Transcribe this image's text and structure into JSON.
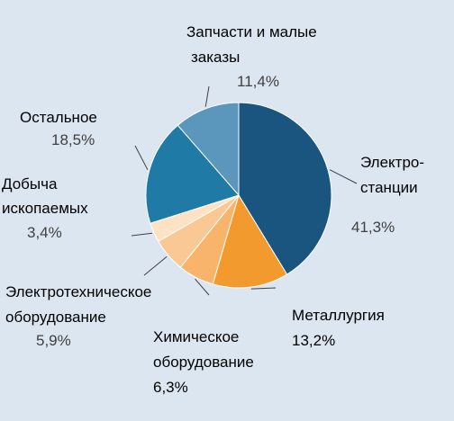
{
  "chart_data": {
    "type": "pie",
    "slices": [
      {
        "label_lines": [
          "Электро-",
          "станции"
        ],
        "value": 41.3,
        "value_label": "41,3%",
        "color": "#1a5580"
      },
      {
        "label_lines": [
          "Металлургия"
        ],
        "value": 13.2,
        "value_label": "13,2%",
        "color": "#f39a2e"
      },
      {
        "label_lines": [
          "Химическое",
          "оборудование"
        ],
        "value": 6.3,
        "value_label": "6,3%",
        "color": "#f7b46a"
      },
      {
        "label_lines": [
          "Электротехническое",
          "оборудование"
        ],
        "value": 5.9,
        "value_label": "5,9%",
        "color": "#fac895"
      },
      {
        "label_lines": [
          "Добыча",
          "ископаемых"
        ],
        "value": 3.4,
        "value_label": "3,4%",
        "color": "#fde2c4"
      },
      {
        "label_lines": [
          "Остальное"
        ],
        "value": 18.5,
        "value_label": "18,5%",
        "color": "#1f7aa6"
      },
      {
        "label_lines": [
          "Запчасти и малые",
          "заказы"
        ],
        "value": 11.4,
        "value_label": "11,4%",
        "color": "#5b96bc"
      }
    ],
    "start_angle": "12 o'clock",
    "direction": "clockwise",
    "legend": "none",
    "data_labels": "outside with leader lines"
  }
}
